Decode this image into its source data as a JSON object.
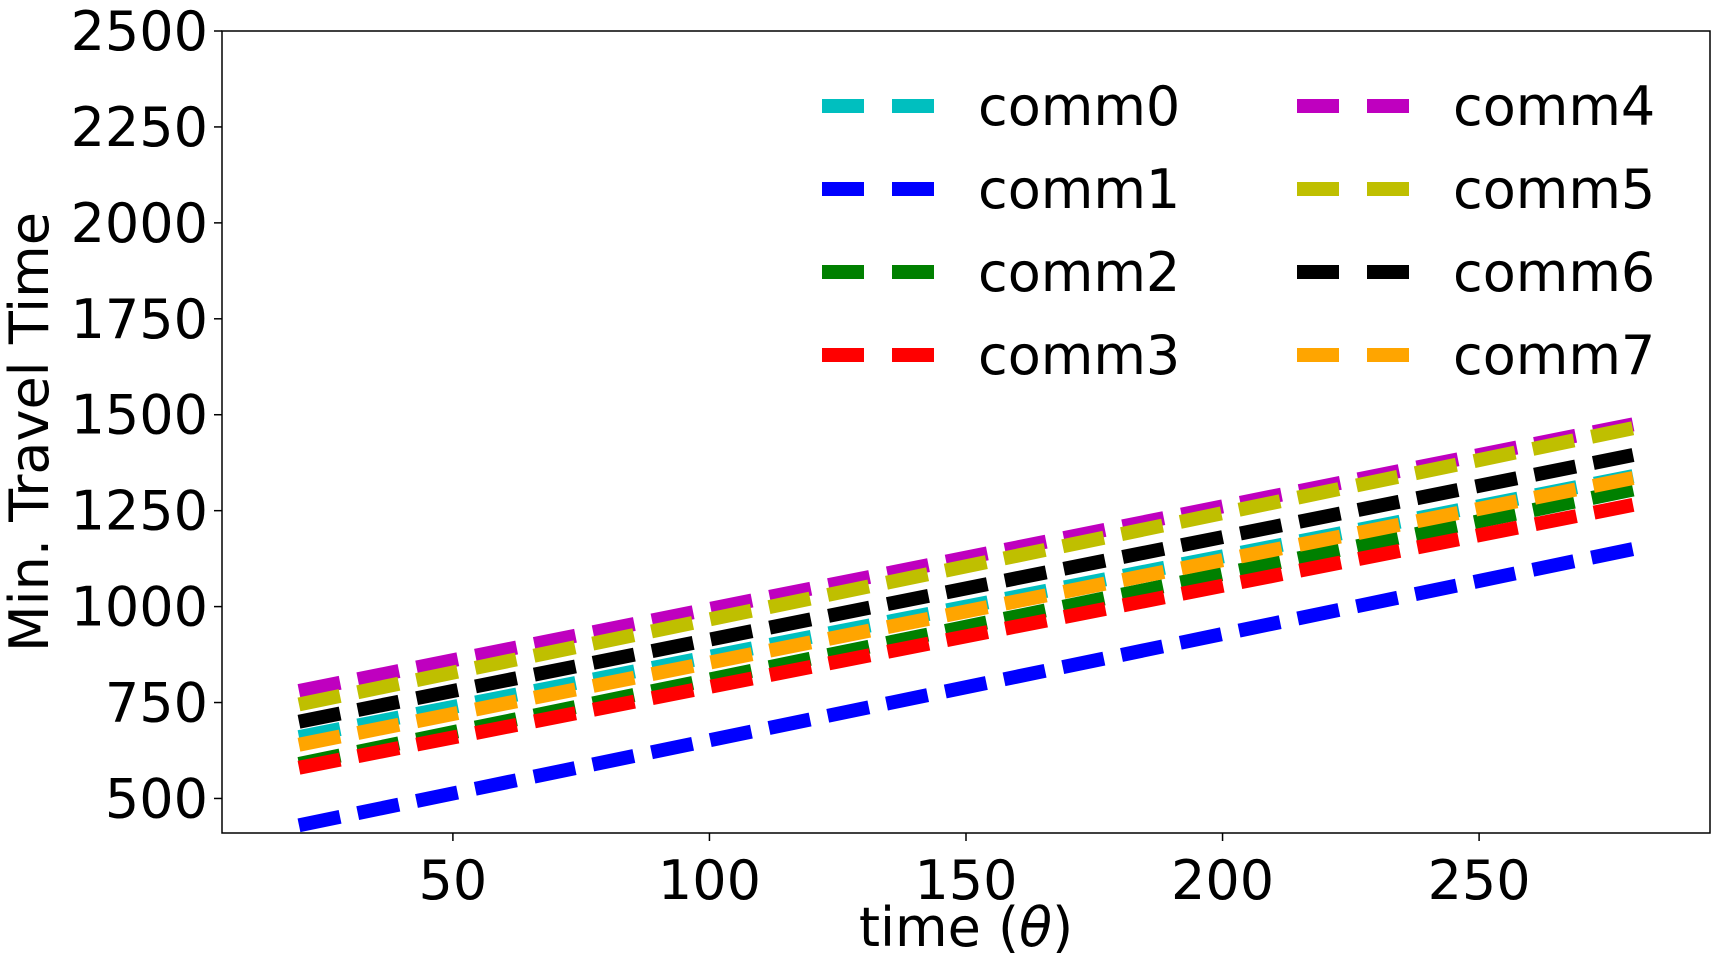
{
  "chart_data": {
    "type": "line",
    "xlabel_prefix": "time (",
    "xlabel_symbol": "θ",
    "xlabel_suffix": ")",
    "ylabel": "Min. Travel Time",
    "xlim": [
      5,
      295
    ],
    "ylim": [
      410,
      2500
    ],
    "xticks": [
      50,
      100,
      150,
      200,
      250
    ],
    "yticks": [
      500,
      750,
      1000,
      1250,
      1500,
      1750,
      2000,
      2250,
      2500
    ],
    "grid": false,
    "legend_position": "top-right",
    "legend_columns": 2,
    "x": [
      20,
      280
    ],
    "series": [
      {
        "name": "comm0",
        "color": "#00bfbf",
        "values": [
          660,
          1340
        ]
      },
      {
        "name": "comm1",
        "color": "#0000ff",
        "values": [
          430,
          1150
        ]
      },
      {
        "name": "comm2",
        "color": "#008000",
        "values": [
          590,
          1305
        ]
      },
      {
        "name": "comm3",
        "color": "#ff0000",
        "values": [
          580,
          1265
        ]
      },
      {
        "name": "comm4",
        "color": "#bf00bf",
        "values": [
          780,
          1475
        ]
      },
      {
        "name": "comm5",
        "color": "#bfbf00",
        "values": [
          745,
          1465
        ]
      },
      {
        "name": "comm6",
        "color": "#000000",
        "values": [
          700,
          1395
        ]
      },
      {
        "name": "comm7",
        "color": "#ffa500",
        "values": [
          640,
          1335
        ]
      }
    ]
  }
}
